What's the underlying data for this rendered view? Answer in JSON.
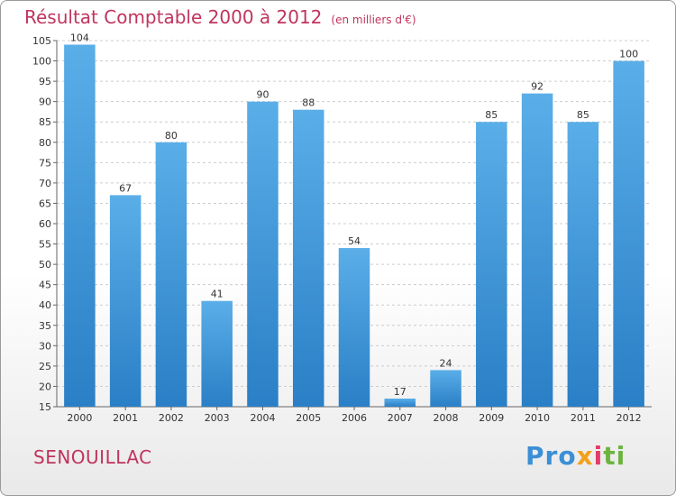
{
  "header": {
    "title": "Résultat Comptable 2000 à 2012",
    "unit": "(en milliers d'€)"
  },
  "footer": {
    "town": "SENOUILLAC",
    "logo_parts": [
      "Pro",
      "x",
      "i",
      "ti"
    ]
  },
  "colors": {
    "accent": "#c0345e",
    "bar_light": "#5aaee8",
    "bar_dark": "#2a7fc6"
  },
  "chart_data": {
    "type": "bar",
    "title": "Résultat Comptable 2000 à 2012",
    "ylabel": "en milliers d'€",
    "xlabel": "",
    "categories": [
      "2000",
      "2001",
      "2002",
      "2003",
      "2004",
      "2005",
      "2006",
      "2007",
      "2008",
      "2009",
      "2010",
      "2011",
      "2012"
    ],
    "values": [
      104,
      67,
      80,
      41,
      90,
      88,
      54,
      17,
      24,
      85,
      92,
      85,
      100
    ],
    "ylim": [
      15,
      105
    ],
    "yticks": [
      15,
      20,
      25,
      30,
      35,
      40,
      45,
      50,
      55,
      60,
      65,
      70,
      75,
      80,
      85,
      90,
      95,
      100,
      105
    ],
    "grid": true
  }
}
